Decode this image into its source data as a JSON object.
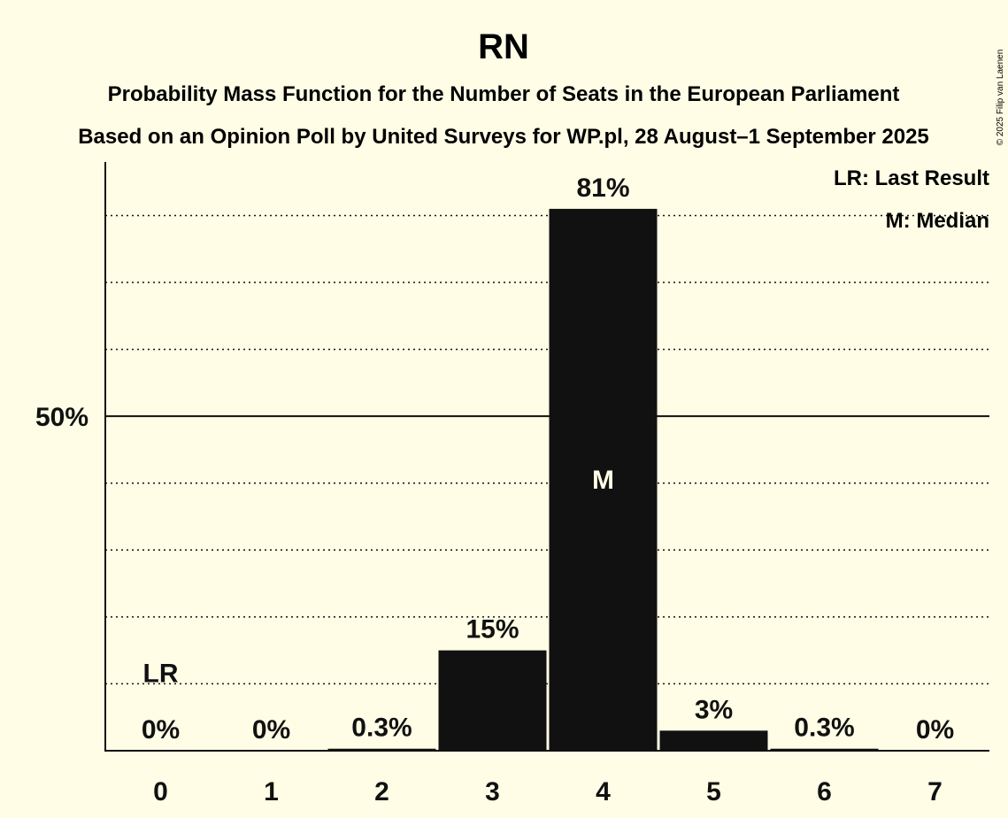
{
  "chart_data": {
    "type": "bar",
    "title": "RN",
    "subtitle_lines": [
      "Probability Mass Function for the Number of Seats in the European Parliament",
      "Based on an Opinion Poll by United Surveys for WP.pl, 28 August–1 September 2025"
    ],
    "copyright": "© 2025 Filip van Laenen",
    "categories": [
      "0",
      "1",
      "2",
      "3",
      "4",
      "5",
      "6",
      "7"
    ],
    "values": [
      0,
      0,
      0.3,
      15,
      81,
      3,
      0.3,
      0
    ],
    "value_labels": [
      "0%",
      "0%",
      "0.3%",
      "15%",
      "81%",
      "3%",
      "0.3%",
      "0%"
    ],
    "ylim": [
      0,
      88
    ],
    "y_major_tick": {
      "value": 50,
      "label": "50%"
    },
    "y_minor_gridlines": [
      10,
      20,
      30,
      40,
      60,
      70,
      80
    ],
    "last_result": {
      "category": "0",
      "label": "LR"
    },
    "median": {
      "category": "4",
      "label": "M"
    },
    "legend": [
      "LR: Last Result",
      "M: Median"
    ],
    "legend_position": "top-right",
    "colors": {
      "bar": "#111111",
      "background": "#fffde6",
      "text": "#111111",
      "median_text": "#fffde6"
    }
  }
}
